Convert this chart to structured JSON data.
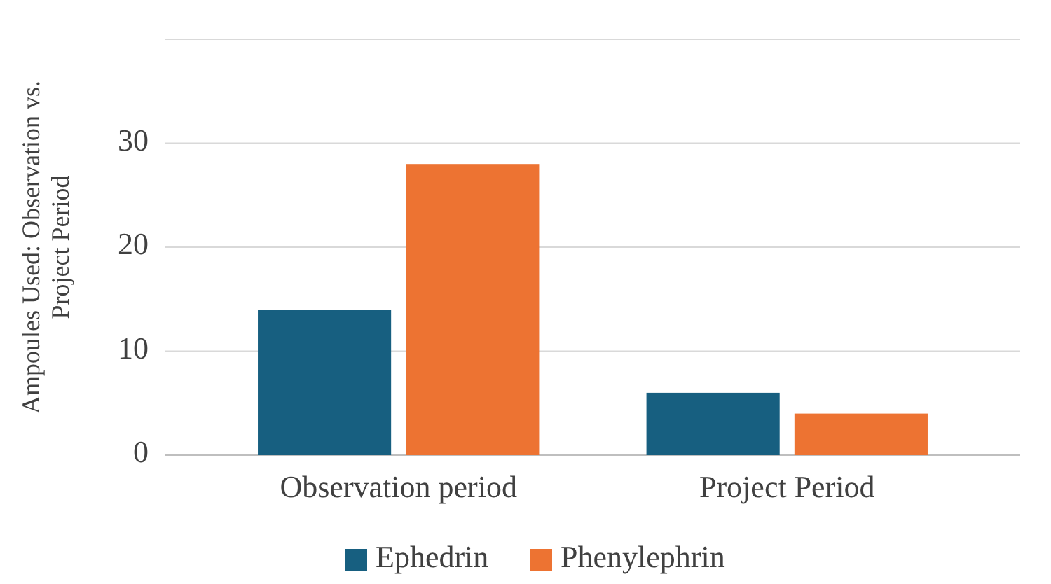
{
  "chart_data": {
    "type": "bar",
    "ylabel": "Ampoules Used: Observation vs. Project Period",
    "categories": [
      "Observation period",
      "Project Period"
    ],
    "series": [
      {
        "name": "Ephedrin",
        "color": "#175f80",
        "values": [
          14,
          6
        ]
      },
      {
        "name": "Phenylephrin",
        "color": "#ed7332",
        "values": [
          28,
          4
        ]
      }
    ],
    "ylim": [
      0,
      40
    ],
    "yticks": [
      0,
      10,
      20,
      30,
      {
        "value": 40,
        "label": null
      }
    ],
    "grid": "y",
    "legend": "bottom"
  }
}
